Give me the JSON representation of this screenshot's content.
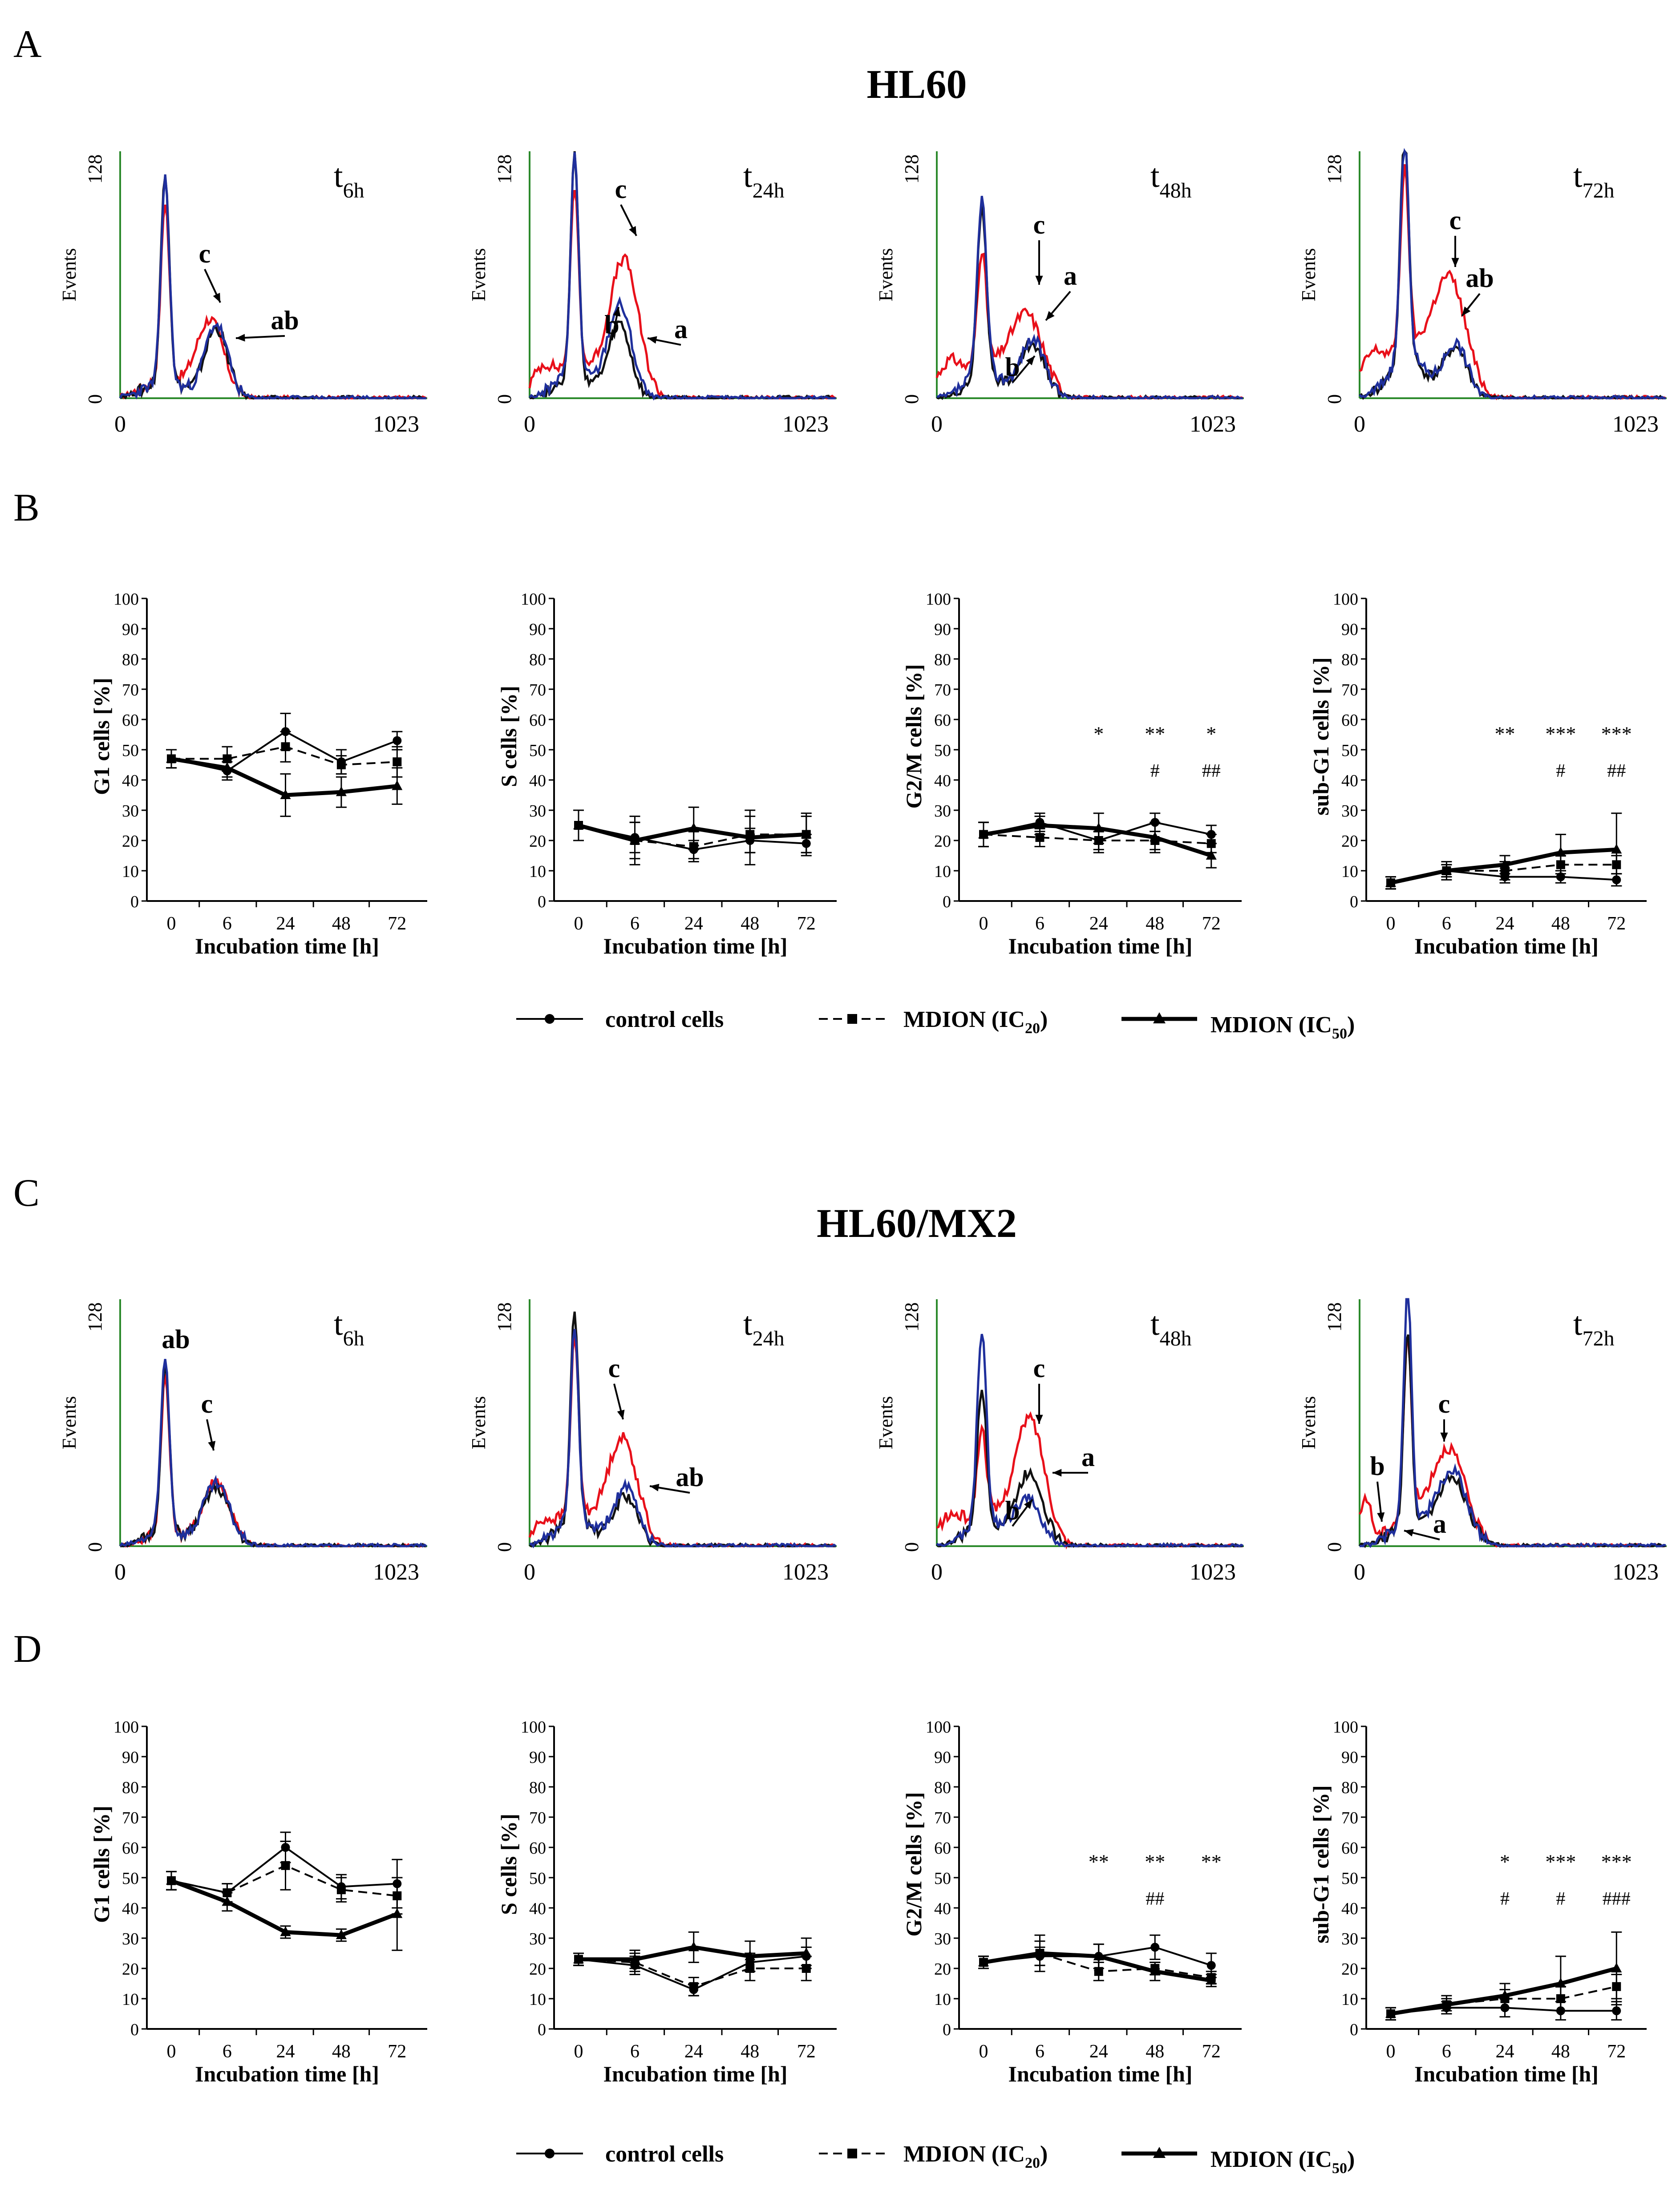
{
  "figure": {
    "panels": {
      "A": "A",
      "B": "B",
      "C": "C",
      "D": "D"
    },
    "title_top": "HL60",
    "title_bottom": "HL60/MX2",
    "colors": {
      "red": "#e8101a",
      "blue": "#1f2f9c",
      "black": "#111111",
      "green": "#2c8a2c"
    }
  },
  "histograms": {
    "y_axis_label": "Events",
    "y_top_tick": "128",
    "y_zero_tick": "0",
    "x_start_tick": "0",
    "x_end_tick": "1023",
    "t_letter": "t",
    "times": [
      "6h",
      "24h",
      "48h",
      "72h"
    ]
  },
  "histogram_annotations": {
    "top": [
      [
        "c",
        "ab"
      ],
      [
        "c",
        "b",
        "a"
      ],
      [
        "c",
        "a",
        "b"
      ],
      [
        "c",
        "ab"
      ]
    ],
    "bottom": [
      [
        "ab",
        "c"
      ],
      [
        "c",
        "ab"
      ],
      [
        "c",
        "a",
        "b"
      ],
      [
        "b",
        "c",
        "a"
      ]
    ]
  },
  "legend": {
    "control": "control cells",
    "ic20_prefix": "MDION (IC",
    "ic20_sub": "20",
    "ic50_prefix": "MDION (IC",
    "ic50_sub": "50",
    "suffix": ")"
  },
  "chart_data": [
    {
      "type": "line",
      "panel": "B",
      "cell_line": "HL60",
      "x": [
        0,
        6,
        24,
        48,
        72
      ],
      "ylim": [
        0,
        100
      ],
      "yticks": [
        0,
        10,
        20,
        30,
        40,
        50,
        60,
        70,
        80,
        90,
        100
      ],
      "xlabel": "Incubation time [h]",
      "ylabel": "G1 cells [%]",
      "series": [
        {
          "name": "control cells",
          "values": [
            47,
            43,
            56,
            46,
            53
          ],
          "err": [
            3,
            3,
            6,
            4,
            3
          ]
        },
        {
          "name": "MDION (IC20)",
          "values": [
            47,
            47,
            51,
            45,
            46
          ],
          "err": [
            3,
            4,
            5,
            3,
            5
          ]
        },
        {
          "name": "MDION (IC50)",
          "values": [
            47,
            44,
            35,
            36,
            38
          ],
          "err": [
            3,
            3,
            7,
            5,
            6
          ]
        }
      ],
      "stars": [
        "",
        "",
        "",
        "",
        ""
      ],
      "hashes": [
        "",
        "",
        "",
        "",
        ""
      ]
    },
    {
      "type": "line",
      "panel": "B",
      "cell_line": "HL60",
      "x": [
        0,
        6,
        24,
        48,
        72
      ],
      "ylim": [
        0,
        100
      ],
      "yticks": [
        0,
        10,
        20,
        30,
        40,
        50,
        60,
        70,
        80,
        90,
        100
      ],
      "xlabel": "Incubation time [h]",
      "ylabel": "S cells [%]",
      "series": [
        {
          "name": "control cells",
          "values": [
            25,
            21,
            17,
            20,
            19
          ],
          "err": [
            5,
            5,
            3,
            4,
            3
          ]
        },
        {
          "name": "MDION (IC20)",
          "values": [
            25,
            20,
            18,
            22,
            22
          ],
          "err": [
            5,
            8,
            5,
            6,
            7
          ]
        },
        {
          "name": "MDION (IC50)",
          "values": [
            25,
            20,
            24,
            21,
            22
          ],
          "err": [
            5,
            6,
            7,
            9,
            6
          ]
        }
      ],
      "stars": [
        "",
        "",
        "",
        "",
        ""
      ],
      "hashes": [
        "",
        "",
        "",
        "",
        ""
      ]
    },
    {
      "type": "line",
      "panel": "B",
      "cell_line": "HL60",
      "x": [
        0,
        6,
        24,
        48,
        72
      ],
      "ylim": [
        0,
        100
      ],
      "yticks": [
        0,
        10,
        20,
        30,
        40,
        50,
        60,
        70,
        80,
        90,
        100
      ],
      "xlabel": "Incubation time [h]",
      "ylabel": "G2/M cells [%]",
      "series": [
        {
          "name": "control cells",
          "values": [
            22,
            26,
            20,
            26,
            22
          ],
          "err": [
            4,
            3,
            4,
            3,
            3
          ]
        },
        {
          "name": "MDION (IC20)",
          "values": [
            22,
            21,
            20,
            20,
            19
          ],
          "err": [
            4,
            3,
            3,
            3,
            3
          ]
        },
        {
          "name": "MDION (IC50)",
          "values": [
            22,
            25,
            24,
            21,
            15
          ],
          "err": [
            4,
            3,
            5,
            5,
            4
          ]
        }
      ],
      "stars": [
        "",
        "",
        "*",
        "**",
        "*"
      ],
      "hashes": [
        "",
        "",
        "",
        "#",
        "##"
      ]
    },
    {
      "type": "line",
      "panel": "B",
      "cell_line": "HL60",
      "x": [
        0,
        6,
        24,
        48,
        72
      ],
      "ylim": [
        0,
        100
      ],
      "yticks": [
        0,
        10,
        20,
        30,
        40,
        50,
        60,
        70,
        80,
        90,
        100
      ],
      "xlabel": "Incubation time [h]",
      "ylabel": "sub-G1 cells [%]",
      "series": [
        {
          "name": "control cells",
          "values": [
            6,
            10,
            8,
            8,
            7
          ],
          "err": [
            2,
            2,
            2,
            2,
            2
          ]
        },
        {
          "name": "MDION (IC20)",
          "values": [
            6,
            10,
            10,
            12,
            12
          ],
          "err": [
            2,
            2,
            3,
            3,
            3
          ]
        },
        {
          "name": "MDION (IC50)",
          "values": [
            6,
            10,
            12,
            16,
            17
          ],
          "err": [
            2,
            3,
            3,
            6,
            12
          ]
        }
      ],
      "stars": [
        "",
        "",
        "**",
        "***",
        "***"
      ],
      "hashes": [
        "",
        "",
        "",
        "#",
        "##"
      ]
    },
    {
      "type": "line",
      "panel": "D",
      "cell_line": "HL60/MX2",
      "x": [
        0,
        6,
        24,
        48,
        72
      ],
      "ylim": [
        0,
        100
      ],
      "yticks": [
        0,
        10,
        20,
        30,
        40,
        50,
        60,
        70,
        80,
        90,
        100
      ],
      "xlabel": "Incubation time [h]",
      "ylabel": "G1 cells [%]",
      "series": [
        {
          "name": "control cells",
          "values": [
            49,
            45,
            60,
            47,
            48
          ],
          "err": [
            3,
            3,
            5,
            4,
            8
          ]
        },
        {
          "name": "MDION (IC20)",
          "values": [
            49,
            45,
            54,
            46,
            44
          ],
          "err": [
            3,
            3,
            8,
            4,
            6
          ]
        },
        {
          "name": "MDION (IC50)",
          "values": [
            49,
            42,
            32,
            31,
            38
          ],
          "err": [
            3,
            3,
            2,
            2,
            12
          ]
        }
      ],
      "stars": [
        "",
        "",
        "",
        "",
        ""
      ],
      "hashes": [
        "",
        "",
        "",
        "",
        ""
      ]
    },
    {
      "type": "line",
      "panel": "D",
      "cell_line": "HL60/MX2",
      "x": [
        0,
        6,
        24,
        48,
        72
      ],
      "ylim": [
        0,
        100
      ],
      "yticks": [
        0,
        10,
        20,
        30,
        40,
        50,
        60,
        70,
        80,
        90,
        100
      ],
      "xlabel": "Incubation time [h]",
      "ylabel": "S cells [%]",
      "series": [
        {
          "name": "control cells",
          "values": [
            23,
            21,
            13,
            22,
            24
          ],
          "err": [
            2,
            3,
            2,
            3,
            3
          ]
        },
        {
          "name": "MDION (IC20)",
          "values": [
            23,
            22,
            14,
            20,
            20
          ],
          "err": [
            2,
            3,
            3,
            4,
            4
          ]
        },
        {
          "name": "MDION (IC50)",
          "values": [
            23,
            23,
            27,
            24,
            25
          ],
          "err": [
            2,
            3,
            5,
            5,
            5
          ]
        }
      ],
      "stars": [
        "",
        "",
        "",
        "",
        ""
      ],
      "hashes": [
        "",
        "",
        "",
        "",
        ""
      ]
    },
    {
      "type": "line",
      "panel": "D",
      "cell_line": "HL60/MX2",
      "x": [
        0,
        6,
        24,
        48,
        72
      ],
      "ylim": [
        0,
        100
      ],
      "yticks": [
        0,
        10,
        20,
        30,
        40,
        50,
        60,
        70,
        80,
        90,
        100
      ],
      "xlabel": "Incubation time [h]",
      "ylabel": "G2/M cells [%]",
      "series": [
        {
          "name": "control cells",
          "values": [
            22,
            24,
            24,
            27,
            21
          ],
          "err": [
            2,
            3,
            4,
            4,
            4
          ]
        },
        {
          "name": "MDION (IC20)",
          "values": [
            22,
            25,
            19,
            20,
            17
          ],
          "err": [
            2,
            6,
            3,
            2,
            2
          ]
        },
        {
          "name": "MDION (IC50)",
          "values": [
            22,
            25,
            24,
            19,
            16
          ],
          "err": [
            2,
            4,
            4,
            3,
            2
          ]
        }
      ],
      "stars": [
        "",
        "",
        "**",
        "**",
        "**"
      ],
      "hashes": [
        "",
        "",
        "",
        "##",
        ""
      ]
    },
    {
      "type": "line",
      "panel": "D",
      "cell_line": "HL60/MX2",
      "x": [
        0,
        6,
        24,
        48,
        72
      ],
      "ylim": [
        0,
        100
      ],
      "yticks": [
        0,
        10,
        20,
        30,
        40,
        50,
        60,
        70,
        80,
        90,
        100
      ],
      "xlabel": "Incubation time [h]",
      "ylabel": "sub-G1 cells [%]",
      "series": [
        {
          "name": "control cells",
          "values": [
            5,
            7,
            7,
            6,
            6
          ],
          "err": [
            2,
            2,
            3,
            3,
            3
          ]
        },
        {
          "name": "MDION (IC20)",
          "values": [
            5,
            8,
            10,
            10,
            14
          ],
          "err": [
            2,
            2,
            3,
            4,
            4
          ]
        },
        {
          "name": "MDION (IC50)",
          "values": [
            5,
            8,
            11,
            15,
            20
          ],
          "err": [
            2,
            3,
            4,
            9,
            12
          ]
        }
      ],
      "stars": [
        "",
        "",
        "*",
        "***",
        "***"
      ],
      "hashes": [
        "",
        "",
        "#",
        "#",
        "###"
      ]
    }
  ]
}
